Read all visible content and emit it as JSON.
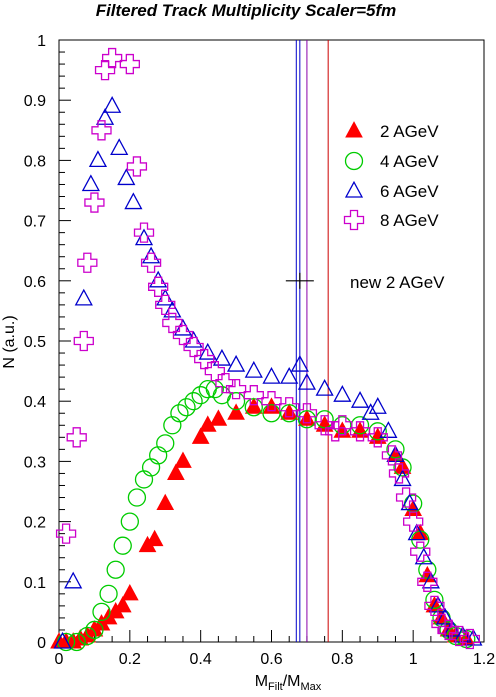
{
  "chart_data": {
    "type": "scatter",
    "title": "Filtered Track Multiplicity Scaler=5fm",
    "xlabel": "M",
    "xlabel_sub1": "Filt",
    "xlabel_mid": "/M",
    "xlabel_sub2": "Max",
    "ylabel": "N (a.u.)",
    "xlim": [
      0,
      1.2
    ],
    "ylim": [
      0,
      1
    ],
    "xticks": [
      "0",
      "0.2",
      "0.4",
      "0.6",
      "0.8",
      "1",
      "1.2"
    ],
    "yticks": [
      "0",
      "0.1",
      "0.2",
      "0.3",
      "0.4",
      "0.5",
      "0.6",
      "0.7",
      "0.8",
      "0.9",
      "1"
    ],
    "grid": false,
    "legend_position": "right",
    "series": [
      {
        "name": "2 AGeV",
        "marker": "filled-triangle",
        "color": "#ff0000",
        "points": [
          [
            0.0,
            0.0
          ],
          [
            0.02,
            0.0
          ],
          [
            0.04,
            0.0
          ],
          [
            0.06,
            0.005
          ],
          [
            0.08,
            0.01
          ],
          [
            0.1,
            0.02
          ],
          [
            0.12,
            0.03
          ],
          [
            0.14,
            0.04
          ],
          [
            0.16,
            0.05
          ],
          [
            0.18,
            0.06
          ],
          [
            0.2,
            0.08
          ],
          [
            0.25,
            0.16
          ],
          [
            0.27,
            0.17
          ],
          [
            0.3,
            0.23
          ],
          [
            0.33,
            0.28
          ],
          [
            0.35,
            0.3
          ],
          [
            0.4,
            0.34
          ],
          [
            0.42,
            0.36
          ],
          [
            0.45,
            0.37
          ],
          [
            0.5,
            0.38
          ],
          [
            0.55,
            0.39
          ],
          [
            0.6,
            0.39
          ],
          [
            0.65,
            0.38
          ],
          [
            0.7,
            0.37
          ],
          [
            0.75,
            0.36
          ],
          [
            0.8,
            0.35
          ],
          [
            0.85,
            0.35
          ],
          [
            0.9,
            0.34
          ],
          [
            0.95,
            0.31
          ],
          [
            0.97,
            0.29
          ],
          [
            1.0,
            0.22
          ],
          [
            1.02,
            0.18
          ],
          [
            1.04,
            0.11
          ],
          [
            1.06,
            0.06
          ],
          [
            1.08,
            0.04
          ],
          [
            1.1,
            0.02
          ],
          [
            1.12,
            0.01
          ],
          [
            1.15,
            0.005
          ]
        ]
      },
      {
        "name": "4 AGeV",
        "marker": "open-circle",
        "color": "#00cc00",
        "points": [
          [
            0.02,
            0.0
          ],
          [
            0.05,
            0.0
          ],
          [
            0.08,
            0.01
          ],
          [
            0.1,
            0.02
          ],
          [
            0.12,
            0.05
          ],
          [
            0.14,
            0.08
          ],
          [
            0.16,
            0.12
          ],
          [
            0.18,
            0.16
          ],
          [
            0.2,
            0.2
          ],
          [
            0.22,
            0.24
          ],
          [
            0.24,
            0.27
          ],
          [
            0.26,
            0.29
          ],
          [
            0.28,
            0.31
          ],
          [
            0.3,
            0.33
          ],
          [
            0.32,
            0.36
          ],
          [
            0.34,
            0.38
          ],
          [
            0.36,
            0.39
          ],
          [
            0.38,
            0.4
          ],
          [
            0.4,
            0.41
          ],
          [
            0.42,
            0.42
          ],
          [
            0.44,
            0.42
          ],
          [
            0.46,
            0.41
          ],
          [
            0.5,
            0.4
          ],
          [
            0.55,
            0.39
          ],
          [
            0.6,
            0.38
          ],
          [
            0.65,
            0.38
          ],
          [
            0.7,
            0.37
          ],
          [
            0.75,
            0.37
          ],
          [
            0.8,
            0.36
          ],
          [
            0.85,
            0.36
          ],
          [
            0.9,
            0.35
          ],
          [
            0.95,
            0.32
          ],
          [
            0.97,
            0.29
          ],
          [
            1.0,
            0.23
          ],
          [
            1.02,
            0.17
          ],
          [
            1.04,
            0.12
          ],
          [
            1.06,
            0.07
          ],
          [
            1.08,
            0.04
          ],
          [
            1.1,
            0.02
          ],
          [
            1.12,
            0.01
          ],
          [
            1.15,
            0.005
          ]
        ]
      },
      {
        "name": "6 AGeV",
        "marker": "open-triangle",
        "color": "#0000cc",
        "points": [
          [
            0.01,
            0.0
          ],
          [
            0.04,
            0.1
          ],
          [
            0.07,
            0.57
          ],
          [
            0.09,
            0.76
          ],
          [
            0.11,
            0.8
          ],
          [
            0.13,
            0.87
          ],
          [
            0.15,
            0.89
          ],
          [
            0.17,
            0.82
          ],
          [
            0.19,
            0.77
          ],
          [
            0.21,
            0.73
          ],
          [
            0.24,
            0.67
          ],
          [
            0.26,
            0.64
          ],
          [
            0.28,
            0.6
          ],
          [
            0.3,
            0.57
          ],
          [
            0.32,
            0.55
          ],
          [
            0.35,
            0.52
          ],
          [
            0.38,
            0.5
          ],
          [
            0.42,
            0.48
          ],
          [
            0.46,
            0.47
          ],
          [
            0.5,
            0.46
          ],
          [
            0.55,
            0.45
          ],
          [
            0.6,
            0.44
          ],
          [
            0.65,
            0.44
          ],
          [
            0.68,
            0.46
          ],
          [
            0.7,
            0.43
          ],
          [
            0.75,
            0.42
          ],
          [
            0.8,
            0.41
          ],
          [
            0.85,
            0.4
          ],
          [
            0.88,
            0.38
          ],
          [
            0.9,
            0.39
          ],
          [
            0.93,
            0.35
          ],
          [
            0.95,
            0.31
          ],
          [
            0.97,
            0.27
          ],
          [
            0.99,
            0.23
          ],
          [
            1.01,
            0.18
          ],
          [
            1.03,
            0.14
          ],
          [
            1.05,
            0.1
          ],
          [
            1.07,
            0.06
          ],
          [
            1.09,
            0.04
          ],
          [
            1.11,
            0.02
          ],
          [
            1.14,
            0.01
          ],
          [
            1.17,
            0.005
          ]
        ]
      },
      {
        "name": "8 AGeV",
        "marker": "open-cross",
        "color": "#cc00cc",
        "points": [
          [
            0.02,
            0.18
          ],
          [
            0.05,
            0.34
          ],
          [
            0.07,
            0.5
          ],
          [
            0.08,
            0.63
          ],
          [
            0.1,
            0.73
          ],
          [
            0.12,
            0.85
          ],
          [
            0.13,
            0.95
          ],
          [
            0.15,
            0.97
          ],
          [
            0.2,
            0.96
          ],
          [
            0.22,
            0.79
          ],
          [
            0.24,
            0.68
          ],
          [
            0.26,
            0.63
          ],
          [
            0.28,
            0.59
          ],
          [
            0.3,
            0.56
          ],
          [
            0.32,
            0.53
          ],
          [
            0.35,
            0.51
          ],
          [
            0.38,
            0.49
          ],
          [
            0.41,
            0.47
          ],
          [
            0.44,
            0.45
          ],
          [
            0.47,
            0.43
          ],
          [
            0.5,
            0.42
          ],
          [
            0.55,
            0.41
          ],
          [
            0.6,
            0.4
          ],
          [
            0.65,
            0.39
          ],
          [
            0.7,
            0.38
          ],
          [
            0.75,
            0.36
          ],
          [
            0.78,
            0.35
          ],
          [
            0.8,
            0.36
          ],
          [
            0.85,
            0.35
          ],
          [
            0.9,
            0.34
          ],
          [
            0.94,
            0.31
          ],
          [
            0.96,
            0.28
          ],
          [
            0.98,
            0.24
          ],
          [
            1.0,
            0.2
          ],
          [
            1.02,
            0.15
          ],
          [
            1.04,
            0.1
          ],
          [
            1.06,
            0.06
          ],
          [
            1.08,
            0.03
          ],
          [
            1.1,
            0.02
          ],
          [
            1.13,
            0.01
          ],
          [
            1.16,
            0.005
          ]
        ]
      },
      {
        "name": "new 2 AGeV",
        "marker": "error-cross",
        "color": "#000000",
        "points": [
          [
            0.68,
            0.6
          ]
        ]
      }
    ],
    "vertical_lines": [
      {
        "x": 0.67,
        "color": "#0000cc"
      },
      {
        "x": 0.68,
        "color": "#0000cc"
      },
      {
        "x": 0.7,
        "color": "#8800aa"
      },
      {
        "x": 0.76,
        "color": "#cc0000"
      }
    ]
  }
}
